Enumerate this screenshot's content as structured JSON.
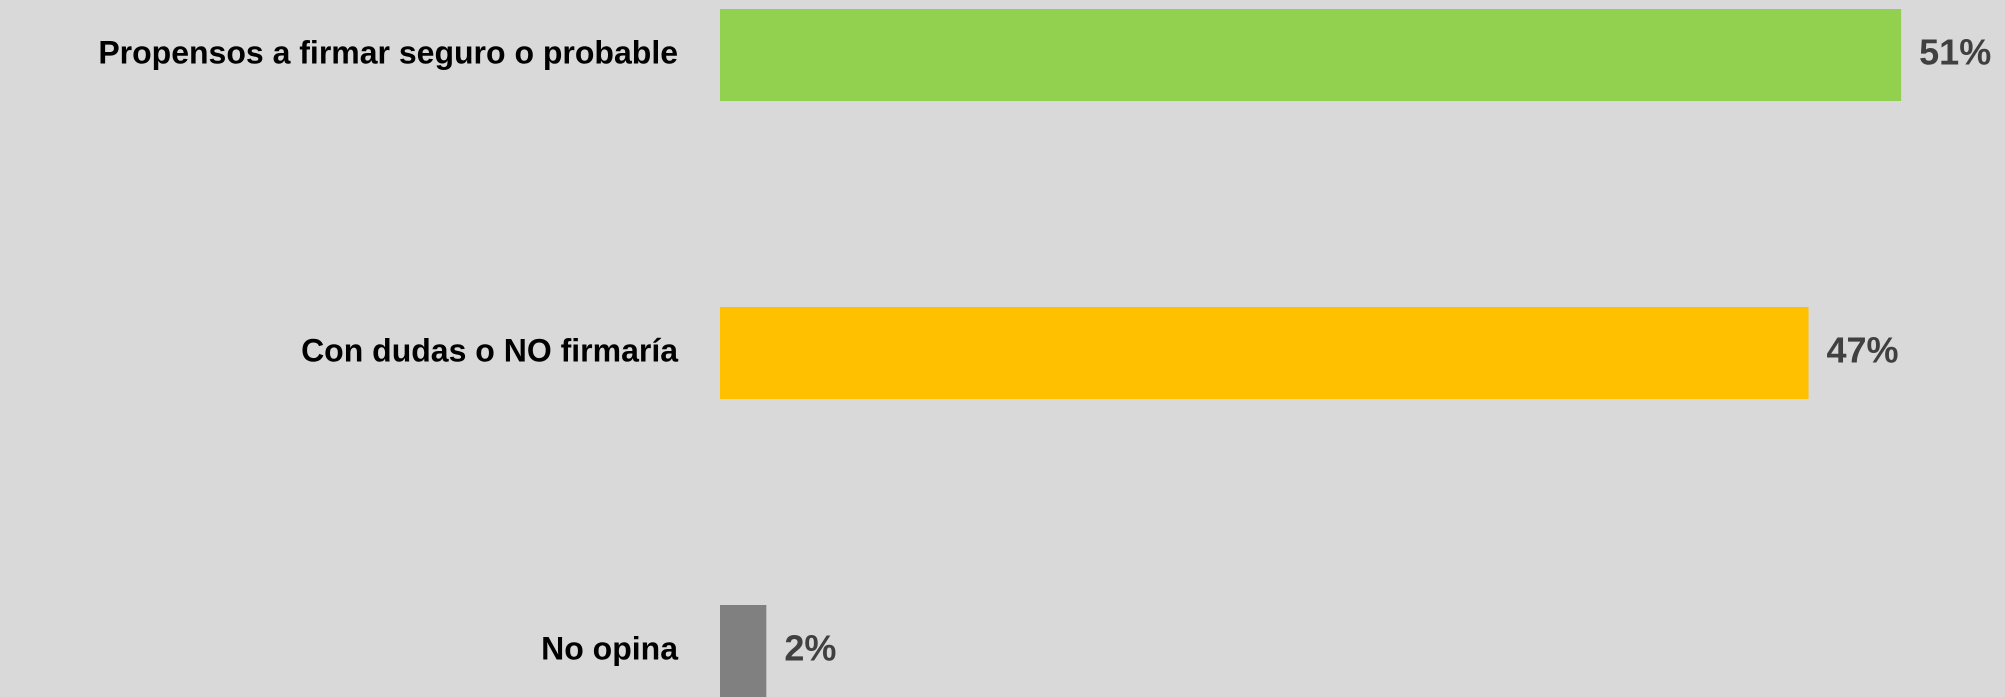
{
  "chart_data": {
    "type": "hbar",
    "categories": [
      "Propensos a firmar seguro o probable",
      "Con dudas o NO firmaría",
      "No opina"
    ],
    "values": [
      51,
      47,
      2
    ],
    "value_labels": [
      "51%",
      "47%",
      "2%"
    ],
    "colors": [
      "#92d050",
      "#ffc000",
      "#808080"
    ]
  }
}
